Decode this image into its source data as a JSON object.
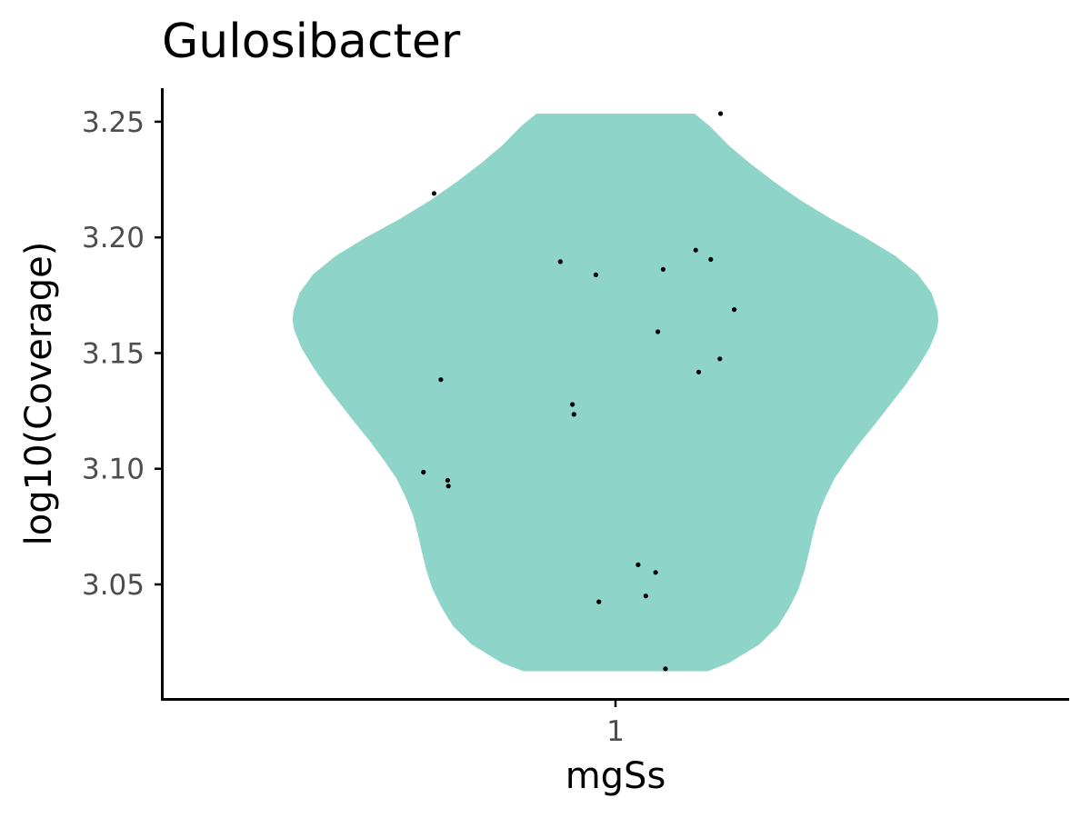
{
  "chart_data": {
    "type": "violin",
    "title": "Gulosibacter",
    "xlabel": "mgSs",
    "ylabel": "log10(Coverage)",
    "categories": [
      "1"
    ],
    "ylim": [
      3.0005,
      3.2645
    ],
    "yticks": [
      3.05,
      3.1,
      3.15,
      3.2,
      3.25
    ],
    "ytick_labels": [
      "3.05",
      "3.10",
      "3.15",
      "3.20",
      "3.25"
    ],
    "grid": false,
    "legend": "none",
    "fill_color": "#8fd4c9",
    "point_color": "#000000",
    "violin": {
      "category": "1",
      "y_min": 3.0125,
      "y_max": 3.2535,
      "profile": [
        [
          3.0125,
          0.244
        ],
        [
          3.016,
          0.3
        ],
        [
          3.024,
          0.38
        ],
        [
          3.032,
          0.43
        ],
        [
          3.04,
          0.46
        ],
        [
          3.048,
          0.484
        ],
        [
          3.056,
          0.5
        ],
        [
          3.064,
          0.512
        ],
        [
          3.072,
          0.523
        ],
        [
          3.08,
          0.536
        ],
        [
          3.088,
          0.556
        ],
        [
          3.096,
          0.58
        ],
        [
          3.104,
          0.614
        ],
        [
          3.112,
          0.65
        ],
        [
          3.12,
          0.69
        ],
        [
          3.128,
          0.728
        ],
        [
          3.136,
          0.766
        ],
        [
          3.144,
          0.8
        ],
        [
          3.152,
          0.83
        ],
        [
          3.16,
          0.85
        ],
        [
          3.164,
          0.854
        ],
        [
          3.168,
          0.852
        ],
        [
          3.176,
          0.836
        ],
        [
          3.184,
          0.8
        ],
        [
          3.192,
          0.74
        ],
        [
          3.2,
          0.66
        ],
        [
          3.208,
          0.57
        ],
        [
          3.216,
          0.49
        ],
        [
          3.224,
          0.42
        ],
        [
          3.232,
          0.356
        ],
        [
          3.24,
          0.298
        ],
        [
          3.248,
          0.25
        ],
        [
          3.2535,
          0.209
        ]
      ]
    },
    "points": [
      {
        "x": 1.139,
        "y": 3.2535
      },
      {
        "x": 0.76,
        "y": 3.219
      },
      {
        "x": 1.106,
        "y": 3.1945
      },
      {
        "x": 1.126,
        "y": 3.1905
      },
      {
        "x": 0.927,
        "y": 3.1895
      },
      {
        "x": 1.063,
        "y": 3.1862
      },
      {
        "x": 0.974,
        "y": 3.1838
      },
      {
        "x": 1.157,
        "y": 3.1688
      },
      {
        "x": 1.056,
        "y": 3.1592
      },
      {
        "x": 1.138,
        "y": 3.1475
      },
      {
        "x": 1.11,
        "y": 3.1418
      },
      {
        "x": 0.769,
        "y": 3.1385
      },
      {
        "x": 0.943,
        "y": 3.1278
      },
      {
        "x": 0.945,
        "y": 3.1235
      },
      {
        "x": 0.746,
        "y": 3.0985
      },
      {
        "x": 0.778,
        "y": 3.095
      },
      {
        "x": 0.779,
        "y": 3.0925
      },
      {
        "x": 1.03,
        "y": 3.0585
      },
      {
        "x": 1.053,
        "y": 3.0552
      },
      {
        "x": 1.04,
        "y": 3.045
      },
      {
        "x": 0.978,
        "y": 3.0425
      },
      {
        "x": 1.066,
        "y": 3.0135
      }
    ]
  }
}
